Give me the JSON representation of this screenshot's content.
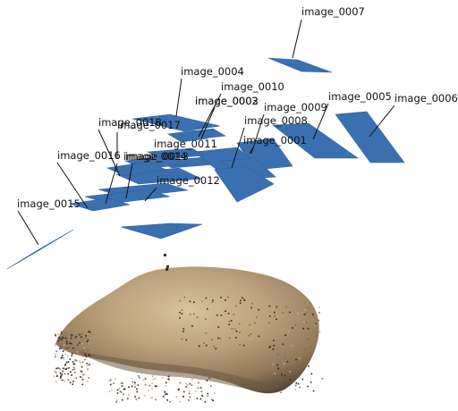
{
  "colors": {
    "camera_plane": "#3b70b0",
    "background": "#ffffff",
    "label": "#111111",
    "point_cloud_light": "#c9ad88",
    "point_cloud_dark": "#7a6650"
  },
  "cameras": [
    {
      "id": "image_0001",
      "label": "image_0001"
    },
    {
      "id": "image_0002",
      "label": "image_0002"
    },
    {
      "id": "image_0003",
      "label": "image_0003"
    },
    {
      "id": "image_0004",
      "label": "image_0004"
    },
    {
      "id": "image_0005",
      "label": "image_0005"
    },
    {
      "id": "image_0006",
      "label": "image_0006"
    },
    {
      "id": "image_0007",
      "label": "image_0007"
    },
    {
      "id": "image_0008",
      "label": "image_0008"
    },
    {
      "id": "image_0009",
      "label": "image_0009"
    },
    {
      "id": "image_0010",
      "label": "image_0010"
    },
    {
      "id": "image_0011",
      "label": "image_0011"
    },
    {
      "id": "image_0012",
      "label": "image_0012"
    },
    {
      "id": "image_0013",
      "label": "image_0013"
    },
    {
      "id": "image_0014",
      "label": "image_0014"
    },
    {
      "id": "image_0015",
      "label": "image_0015"
    },
    {
      "id": "image_0016",
      "label": "image_0016"
    },
    {
      "id": "image_0017",
      "label": "image_0017"
    },
    {
      "id": "image_0018",
      "label": "image_0018"
    }
  ]
}
